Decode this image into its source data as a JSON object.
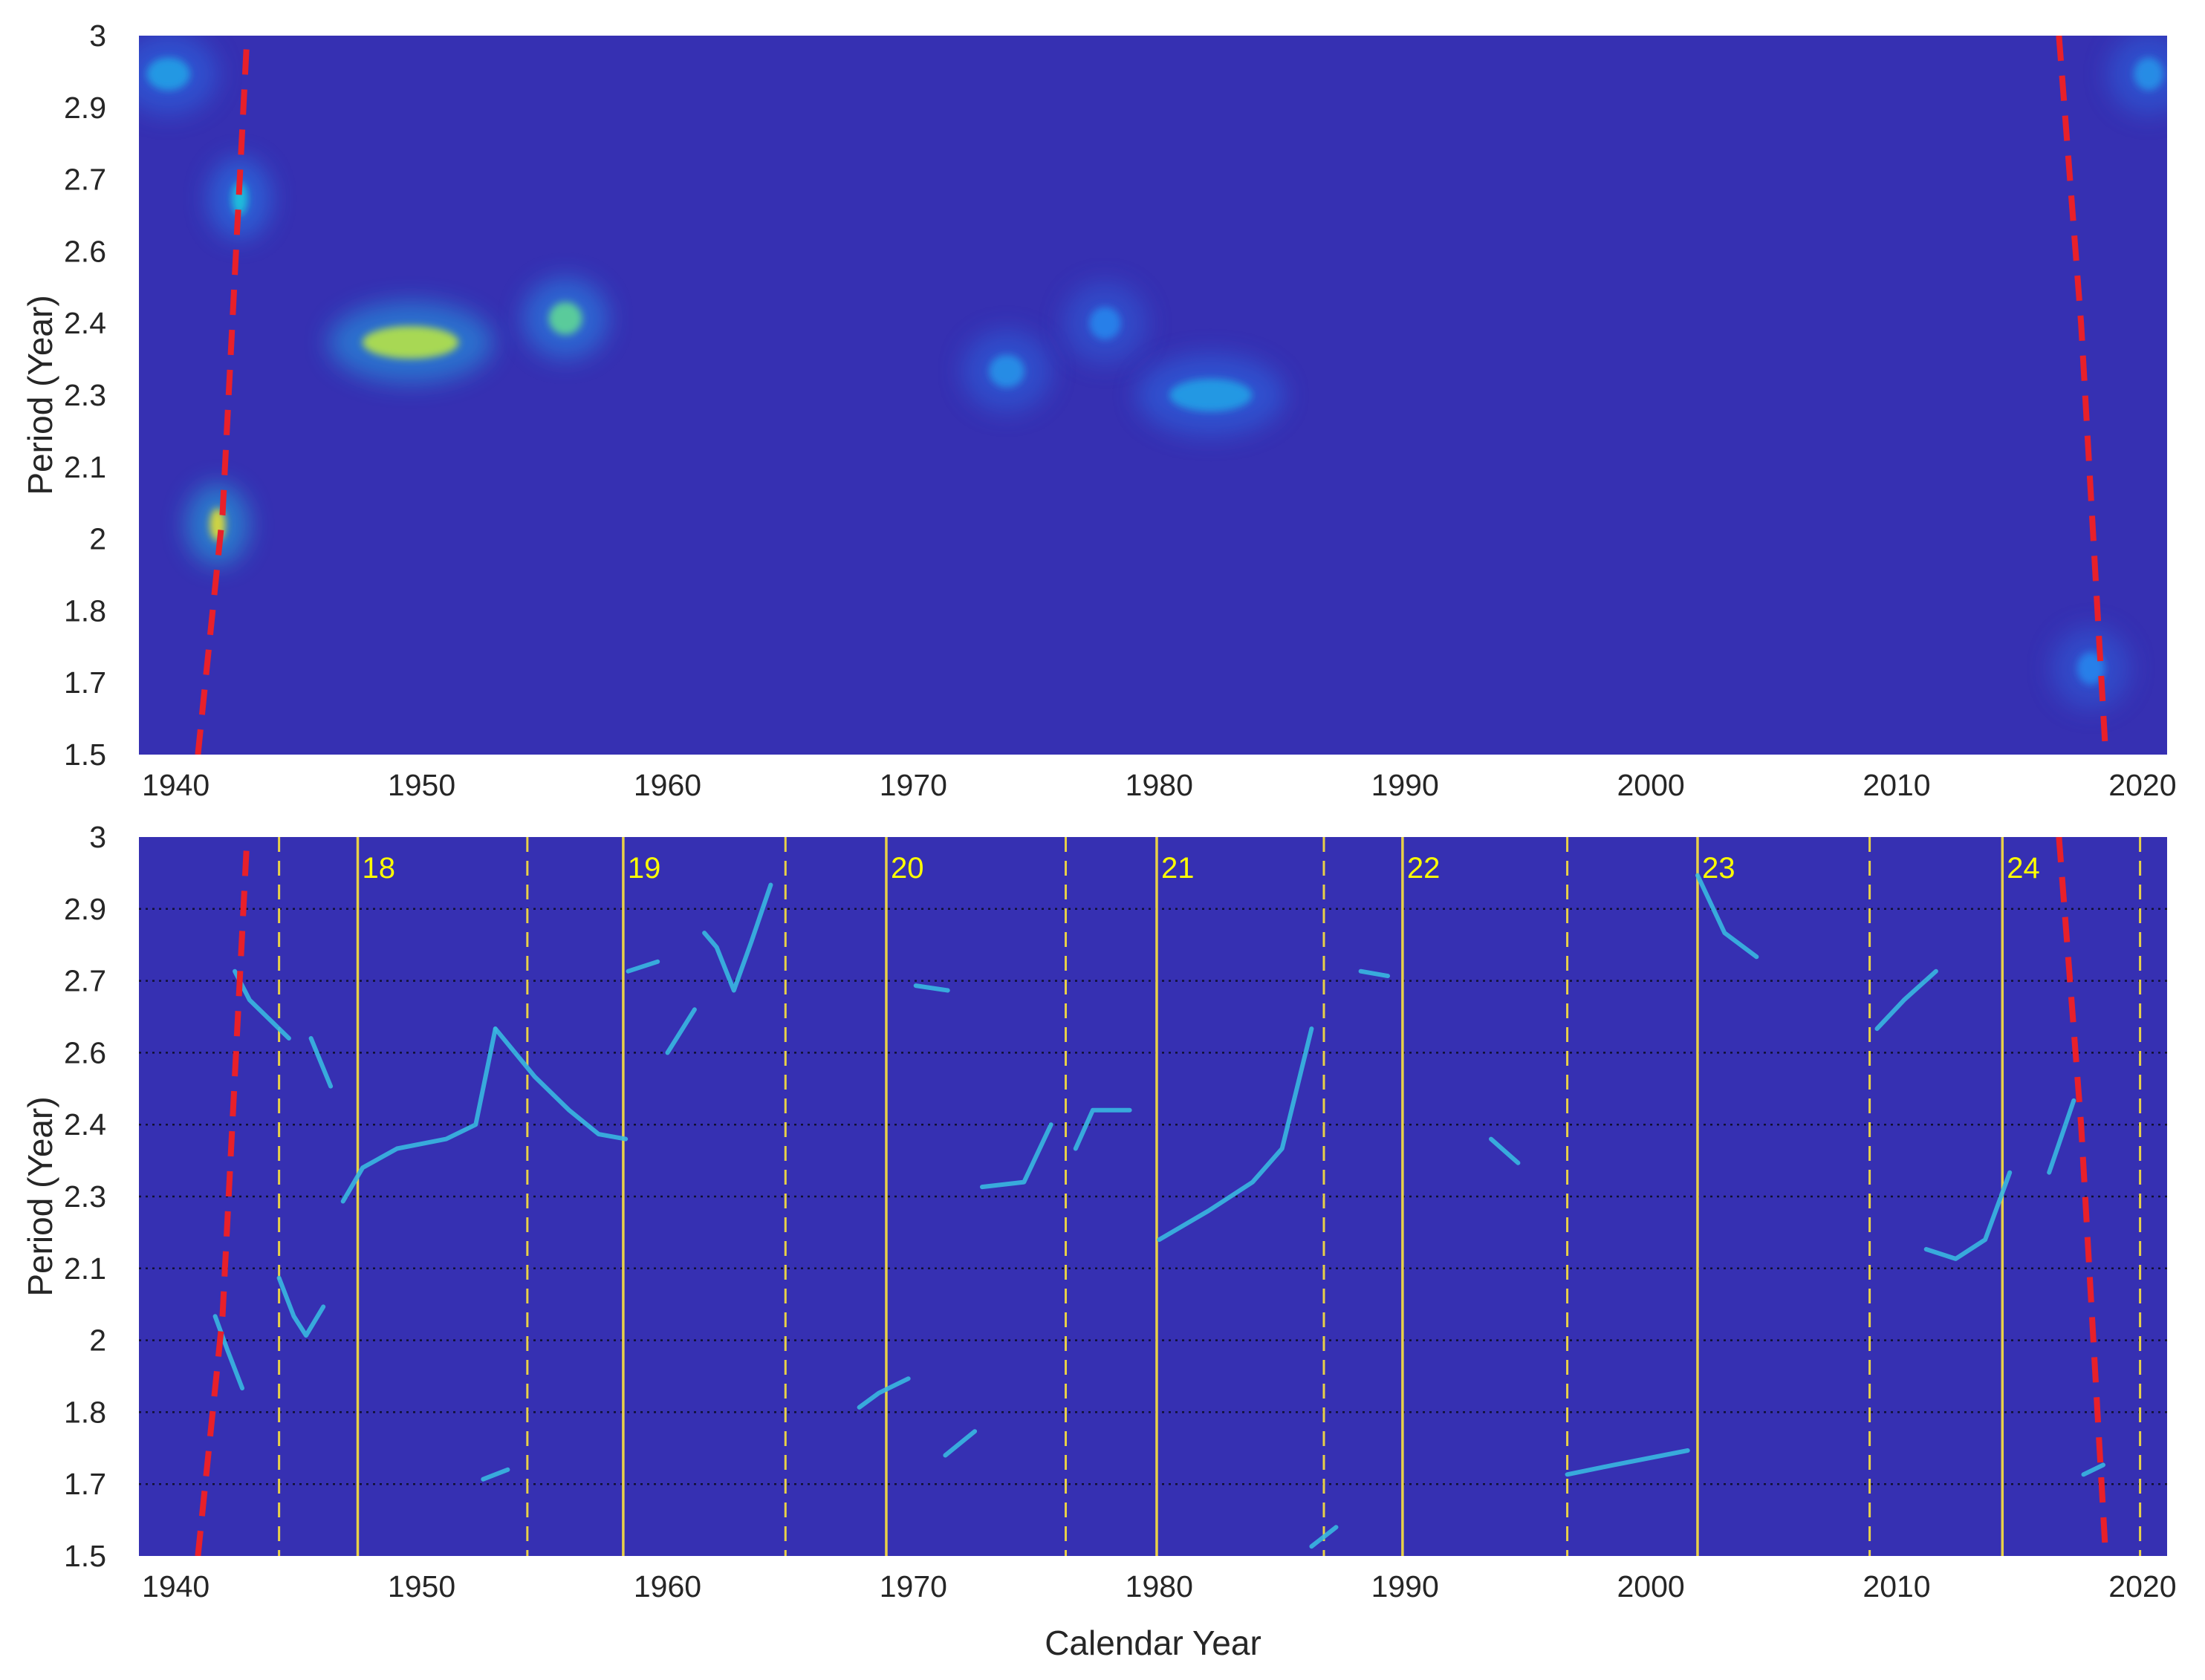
{
  "chart_data": [
    {
      "type": "heatmap",
      "title": "",
      "xlabel": "",
      "ylabel": "Period (Year)",
      "xlim": [
        1938.5,
        2021
      ],
      "ylim": [
        1.5,
        3
      ],
      "x_ticks": [
        "1940",
        "1950",
        "1960",
        "1970",
        "1980",
        "1990",
        "2000",
        "2010",
        "2020"
      ],
      "y_ticks": [
        "1.5",
        "1.7",
        "1.8",
        "2",
        "2.1",
        "2.3",
        "2.4",
        "2.6",
        "2.7",
        "2.9",
        "3"
      ],
      "grid": false,
      "colors": {
        "background": "#3630b2",
        "coi_line": "#e8202a"
      },
      "cone_of_influence": {
        "left": [
          [
            1940.9,
            1.5
          ],
          [
            1941.9,
            2.0
          ],
          [
            1942.9,
            3.0
          ]
        ],
        "right": [
          [
            2016.6,
            3.0
          ],
          [
            2017.5,
            2.4
          ],
          [
            2018.5,
            1.5
          ]
        ]
      },
      "hotspots": [
        {
          "x0": 1938.6,
          "x1": 1940.8,
          "y": 2.92,
          "intensity": 0.45
        },
        {
          "x0": 1941.3,
          "x1": 1942.1,
          "y": 1.98,
          "intensity": 0.95
        },
        {
          "x0": 1942.2,
          "x1": 1943.0,
          "y": 2.66,
          "intensity": 0.6
        },
        {
          "x0": 1947.1,
          "x1": 1952.0,
          "y": 2.36,
          "intensity": 0.85
        },
        {
          "x0": 1955.0,
          "x1": 1956.7,
          "y": 2.41,
          "intensity": 0.7
        },
        {
          "x0": 1972.9,
          "x1": 1974.7,
          "y": 2.3,
          "intensity": 0.4
        },
        {
          "x0": 1977.0,
          "x1": 1978.6,
          "y": 2.4,
          "intensity": 0.35
        },
        {
          "x0": 1980.0,
          "x1": 1984.2,
          "y": 2.25,
          "intensity": 0.45
        },
        {
          "x0": 2017.2,
          "x1": 2018.6,
          "y": 1.68,
          "intensity": 0.35
        },
        {
          "x0": 2019.5,
          "x1": 2021.0,
          "y": 2.92,
          "intensity": 0.4
        }
      ]
    },
    {
      "type": "heatmap",
      "title": "",
      "xlabel": "Calendar Year",
      "ylabel": "Period (Year)",
      "xlim": [
        1938.5,
        2021
      ],
      "ylim": [
        1.5,
        3
      ],
      "x_ticks": [
        "1940",
        "1950",
        "1960",
        "1970",
        "1980",
        "1990",
        "2000",
        "2010",
        "2020"
      ],
      "y_ticks": [
        "1.5",
        "1.7",
        "1.8",
        "2",
        "2.1",
        "2.3",
        "2.4",
        "2.6",
        "2.7",
        "2.9",
        "3"
      ],
      "grid": true,
      "colors": {
        "background": "#3630b2",
        "coi_line": "#e8202a",
        "cycle_line": "#e8d048",
        "cycle_label": "#ffff00",
        "ridge": "#38b8e0"
      },
      "cone_of_influence": {
        "left": [
          [
            1940.9,
            1.5
          ],
          [
            1941.9,
            2.0
          ],
          [
            1942.9,
            3.0
          ]
        ],
        "right": [
          [
            2016.6,
            3.0
          ],
          [
            2017.5,
            2.4
          ],
          [
            2018.5,
            1.5
          ]
        ]
      },
      "cycle_minima": [
        1944.2,
        1954.3,
        1964.8,
        1976.2,
        1986.7,
        1996.6,
        2008.9,
        2019.9
      ],
      "cycle_maxima": [
        {
          "year": 1947.4,
          "cycle": "18"
        },
        {
          "year": 1958.2,
          "cycle": "19"
        },
        {
          "year": 1968.9,
          "cycle": "20"
        },
        {
          "year": 1979.9,
          "cycle": "21"
        },
        {
          "year": 1989.9,
          "cycle": "22"
        },
        {
          "year": 2001.9,
          "cycle": "23"
        },
        {
          "year": 2014.3,
          "cycle": "24"
        }
      ],
      "ridges": [
        {
          "x": [
            1942.4,
            1943.0,
            1943.8,
            1944.6
          ],
          "y": [
            2.72,
            2.66,
            2.62,
            2.58
          ]
        },
        {
          "x": [
            1941.6,
            1942.1,
            1942.7
          ],
          "y": [
            2.0,
            1.93,
            1.85
          ]
        },
        {
          "x": [
            1944.2,
            1944.8,
            1945.3,
            1946.0
          ],
          "y": [
            2.08,
            2.0,
            1.96,
            2.02
          ]
        },
        {
          "x": [
            1945.5,
            1946.3
          ],
          "y": [
            2.58,
            2.48
          ]
        },
        {
          "x": [
            1946.8,
            1947.6,
            1949.0,
            1951.0,
            1952.2,
            1953.0
          ],
          "y": [
            2.24,
            2.31,
            2.35,
            2.37,
            2.4,
            2.6
          ]
        },
        {
          "x": [
            1953.0,
            1954.6,
            1956.0,
            1957.2,
            1958.3
          ],
          "y": [
            2.6,
            2.5,
            2.43,
            2.38,
            2.37
          ]
        },
        {
          "x": [
            1952.5,
            1953.5
          ],
          "y": [
            1.66,
            1.68
          ]
        },
        {
          "x": [
            1961.5,
            1962.0,
            1962.7,
            1963.4,
            1964.2
          ],
          "y": [
            2.8,
            2.77,
            2.68,
            2.78,
            2.9
          ]
        },
        {
          "x": [
            1960.0,
            1961.1
          ],
          "y": [
            2.55,
            2.64
          ]
        },
        {
          "x": [
            1958.4,
            1959.6
          ],
          "y": [
            2.72,
            2.74
          ]
        },
        {
          "x": [
            1970.1,
            1971.4
          ],
          "y": [
            2.69,
            2.68
          ]
        },
        {
          "x": [
            1967.8,
            1968.6,
            1969.8
          ],
          "y": [
            1.81,
            1.84,
            1.87
          ]
        },
        {
          "x": [
            1971.3,
            1972.5
          ],
          "y": [
            1.71,
            1.76
          ]
        },
        {
          "x": [
            1972.8,
            1974.5,
            1975.6
          ],
          "y": [
            2.27,
            2.28,
            2.4
          ]
        },
        {
          "x": [
            1976.6,
            1977.3,
            1978.8
          ],
          "y": [
            2.35,
            2.43,
            2.43
          ]
        },
        {
          "x": [
            1980.0,
            1982.0,
            1983.8,
            1985.0,
            1986.2
          ],
          "y": [
            2.16,
            2.22,
            2.28,
            2.35,
            2.6
          ]
        },
        {
          "x": [
            1986.2,
            1987.2
          ],
          "y": [
            1.52,
            1.56
          ]
        },
        {
          "x": [
            1988.2,
            1989.3
          ],
          "y": [
            2.72,
            2.71
          ]
        },
        {
          "x": [
            1993.5,
            1994.6
          ],
          "y": [
            2.37,
            2.32
          ]
        },
        {
          "x": [
            1996.6,
            1998.5,
            2000.5,
            2001.5
          ],
          "y": [
            1.67,
            1.69,
            1.71,
            1.72
          ]
        },
        {
          "x": [
            2001.9,
            2003.0,
            2004.3
          ],
          "y": [
            2.92,
            2.8,
            2.75
          ]
        },
        {
          "x": [
            2009.2,
            2010.3,
            2011.6
          ],
          "y": [
            2.6,
            2.66,
            2.72
          ]
        },
        {
          "x": [
            2011.2,
            2012.4,
            2013.6,
            2014.6
          ],
          "y": [
            2.14,
            2.12,
            2.16,
            2.3
          ]
        },
        {
          "x": [
            2016.2,
            2017.2
          ],
          "y": [
            2.3,
            2.45
          ]
        },
        {
          "x": [
            2017.6,
            2018.4
          ],
          "y": [
            1.67,
            1.69
          ]
        }
      ]
    }
  ]
}
